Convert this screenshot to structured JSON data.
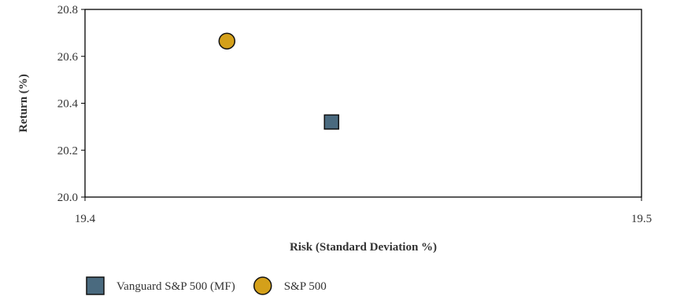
{
  "chart_data": {
    "type": "scatter",
    "title": "",
    "xlabel": "Risk (Standard Deviation %)",
    "ylabel": "Return (%)",
    "xlim": [
      19.4,
      19.5
    ],
    "ylim": [
      20.0,
      20.8
    ],
    "x_ticks": [
      19.4,
      19.5
    ],
    "x_tick_labels": [
      "19.4",
      "19.5"
    ],
    "y_ticks": [
      20.0,
      20.2,
      20.4,
      20.6,
      20.8
    ],
    "y_tick_labels": [
      "20.0",
      "20.2",
      "20.4",
      "20.6",
      "20.8"
    ],
    "grid": false,
    "legend_position": "bottom-left",
    "series": [
      {
        "name": "Vanguard S&P 500 (MF)",
        "marker": "square",
        "color": "#4a6a7f",
        "x": 19.4443,
        "y": 20.32
      },
      {
        "name": "S&P 500",
        "marker": "circle",
        "color": "#d4a01a",
        "x": 19.4255,
        "y": 20.665
      }
    ]
  }
}
